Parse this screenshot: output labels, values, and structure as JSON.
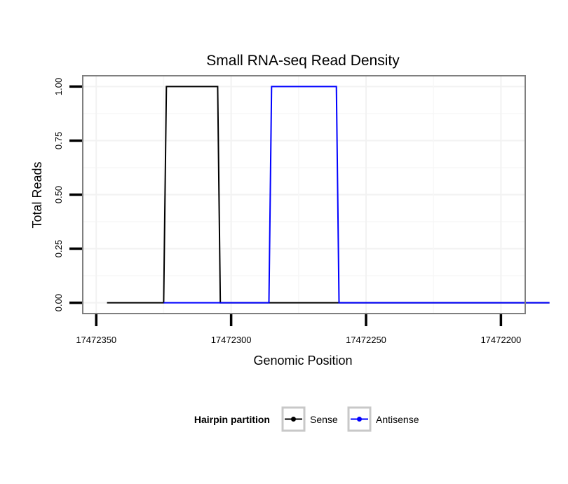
{
  "chart_data": {
    "type": "line",
    "title": "Small RNA-seq Read Density",
    "xlabel": "Genomic Position",
    "ylabel": "Total Reads",
    "x_reversed": true,
    "xlim": [
      17472355,
      17472191
    ],
    "ylim": [
      -0.05,
      1.05
    ],
    "x_ticks": [
      17472350,
      17472300,
      17472250,
      17472200
    ],
    "x_tick_labels": [
      "17472350",
      "17472300",
      "17472250",
      "17472200"
    ],
    "y_ticks": [
      0,
      0.25,
      0.5,
      0.75,
      1
    ],
    "y_tick_labels": [
      "0.00",
      "0.25",
      "0.50",
      "0.75",
      "1.00"
    ],
    "grid": true,
    "legend": {
      "title": "Hairpin partition",
      "position": "bottom"
    },
    "series": [
      {
        "name": "Sense",
        "color": "#000000",
        "x": [
          17472346,
          17472325,
          17472324,
          17472305,
          17472304,
          17472182
        ],
        "values": [
          0,
          0,
          1,
          1,
          0,
          0
        ]
      },
      {
        "name": "Antisense",
        "color": "#0000ff",
        "x": [
          17472325,
          17472286,
          17472285,
          17472261,
          17472260,
          17472182
        ],
        "values": [
          0,
          0,
          1,
          1,
          0,
          0
        ]
      }
    ]
  }
}
